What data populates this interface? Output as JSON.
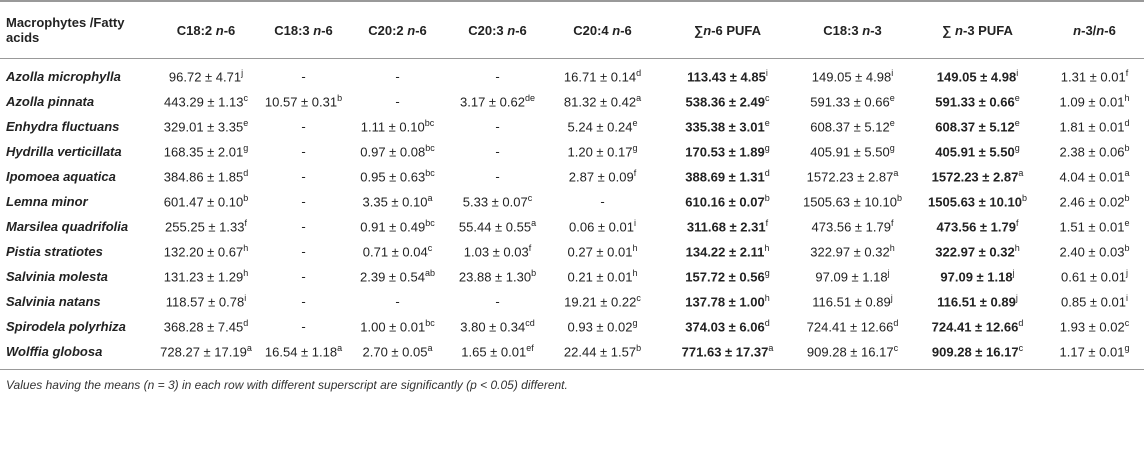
{
  "table": {
    "headers": [
      [
        {
          "text": "Macrophytes /Fatty acids"
        }
      ],
      [
        {
          "text": "C18:2 "
        },
        {
          "text": "n",
          "italic": true
        },
        {
          "text": "-6"
        }
      ],
      [
        {
          "text": "C18:3 "
        },
        {
          "text": "n",
          "italic": true
        },
        {
          "text": "-6"
        }
      ],
      [
        {
          "text": "C20:2 "
        },
        {
          "text": "n",
          "italic": true
        },
        {
          "text": "-6"
        }
      ],
      [
        {
          "text": "C20:3 "
        },
        {
          "text": "n",
          "italic": true
        },
        {
          "text": "-6"
        }
      ],
      [
        {
          "text": "C20:4 "
        },
        {
          "text": "n",
          "italic": true
        },
        {
          "text": "-6"
        }
      ],
      [
        {
          "text": "∑"
        },
        {
          "text": "n",
          "italic": true
        },
        {
          "text": "-6 PUFA"
        }
      ],
      [
        {
          "text": "C18:3 "
        },
        {
          "text": "n",
          "italic": true
        },
        {
          "text": "-3"
        }
      ],
      [
        {
          "text": "∑ "
        },
        {
          "text": "n",
          "italic": true
        },
        {
          "text": "-3 PUFA"
        }
      ],
      [
        {
          "text": "n",
          "italic": true
        },
        {
          "text": "-3/"
        },
        {
          "text": "n",
          "italic": true
        },
        {
          "text": "-6"
        }
      ]
    ],
    "rows": [
      {
        "name": "Azolla microphylla",
        "cells": [
          {
            "value": "96.72 ± 4.71",
            "sup": "j"
          },
          "-",
          "-",
          "-",
          {
            "value": "16.71 ± 0.14",
            "sup": "d"
          },
          {
            "value": "113.43 ± 4.85",
            "sup": "i"
          },
          {
            "value": "149.05 ± 4.98",
            "sup": "i"
          },
          {
            "value": "149.05 ± 4.98",
            "sup": "i"
          },
          {
            "value": "1.31 ± 0.01",
            "sup": "f"
          }
        ]
      },
      {
        "name": "Azolla pinnata",
        "cells": [
          {
            "value": "443.29 ± 1.13",
            "sup": "c"
          },
          {
            "value": "10.57 ± 0.31",
            "sup": "b"
          },
          "-",
          {
            "value": "3.17 ± 0.62",
            "sup": "de"
          },
          {
            "value": "81.32 ± 0.42",
            "sup": "a"
          },
          {
            "value": "538.36 ± 2.49",
            "sup": "c"
          },
          {
            "value": "591.33 ± 0.66",
            "sup": "e"
          },
          {
            "value": "591.33 ± 0.66",
            "sup": "e"
          },
          {
            "value": "1.09 ± 0.01",
            "sup": "h"
          }
        ]
      },
      {
        "name": "Enhydra fluctuans",
        "cells": [
          {
            "value": "329.01 ± 3.35",
            "sup": "e"
          },
          "-",
          {
            "value": "1.11 ± 0.10",
            "sup": "bc"
          },
          "-",
          {
            "value": "5.24 ± 0.24",
            "sup": "e"
          },
          {
            "value": "335.38 ± 3.01",
            "sup": "e"
          },
          {
            "value": "608.37 ± 5.12",
            "sup": "e"
          },
          {
            "value": "608.37 ± 5.12",
            "sup": "e"
          },
          {
            "value": "1.81 ± 0.01",
            "sup": "d"
          }
        ]
      },
      {
        "name": "Hydrilla verticillata",
        "cells": [
          {
            "value": "168.35 ± 2.01",
            "sup": "g"
          },
          "-",
          {
            "value": "0.97 ± 0.08",
            "sup": "bc"
          },
          "-",
          {
            "value": "1.20 ± 0.17",
            "sup": "g"
          },
          {
            "value": "170.53 ± 1.89",
            "sup": "g"
          },
          {
            "value": "405.91 ± 5.50",
            "sup": "g"
          },
          {
            "value": "405.91 ± 5.50",
            "sup": "g"
          },
          {
            "value": "2.38 ± 0.06",
            "sup": "b"
          }
        ]
      },
      {
        "name": "Ipomoea aquatica",
        "cells": [
          {
            "value": "384.86 ± 1.85",
            "sup": "d"
          },
          "-",
          {
            "value": "0.95 ± 0.63",
            "sup": "bc"
          },
          "-",
          {
            "value": "2.87 ± 0.09",
            "sup": "f"
          },
          {
            "value": "388.69 ± 1.31",
            "sup": "d"
          },
          {
            "value": "1572.23 ± 2.87",
            "sup": "a"
          },
          {
            "value": "1572.23 ± 2.87",
            "sup": "a"
          },
          {
            "value": "4.04 ± 0.01",
            "sup": "a"
          }
        ]
      },
      {
        "name": "Lemna minor",
        "cells": [
          {
            "value": "601.47 ± 0.10",
            "sup": "b"
          },
          "-",
          {
            "value": "3.35 ± 0.10",
            "sup": "a"
          },
          {
            "value": "5.33 ± 0.07",
            "sup": "c"
          },
          "-",
          {
            "value": "610.16 ± 0.07",
            "sup": "b"
          },
          {
            "value": "1505.63 ± 10.10",
            "sup": "b"
          },
          {
            "value": "1505.63 ± 10.10",
            "sup": "b"
          },
          {
            "value": "2.46 ± 0.02",
            "sup": "b"
          }
        ]
      },
      {
        "name": "Marsilea quadrifolia",
        "cells": [
          {
            "value": "255.25 ± 1.33",
            "sup": "f"
          },
          "-",
          {
            "value": "0.91 ± 0.49",
            "sup": "bc"
          },
          {
            "value": "55.44 ± 0.55",
            "sup": "a"
          },
          {
            "value": "0.06 ± 0.01",
            "sup": "i"
          },
          {
            "value": "311.68 ± 2.31",
            "sup": "f"
          },
          {
            "value": "473.56 ± 1.79",
            "sup": "f"
          },
          {
            "value": "473.56 ± 1.79",
            "sup": "f"
          },
          {
            "value": "1.51 ± 0.01",
            "sup": "e"
          }
        ]
      },
      {
        "name": "Pistia stratiotes",
        "cells": [
          {
            "value": "132.20 ± 0.67",
            "sup": "h"
          },
          "-",
          {
            "value": "0.71 ± 0.04",
            "sup": "c"
          },
          {
            "value": "1.03 ± 0.03",
            "sup": "f"
          },
          {
            "value": "0.27 ± 0.01",
            "sup": "h"
          },
          {
            "value": "134.22 ± 2.11",
            "sup": "h"
          },
          {
            "value": "322.97 ± 0.32",
            "sup": "h"
          },
          {
            "value": "322.97 ± 0.32",
            "sup": "h"
          },
          {
            "value": "2.40 ± 0.03",
            "sup": "b"
          }
        ]
      },
      {
        "name": "Salvinia molesta",
        "cells": [
          {
            "value": "131.23 ± 1.29",
            "sup": "h"
          },
          "-",
          {
            "value": "2.39 ± 0.54",
            "sup": "ab"
          },
          {
            "value": "23.88 ± 1.30",
            "sup": "b"
          },
          {
            "value": "0.21 ± 0.01",
            "sup": "h"
          },
          {
            "value": "157.72 ± 0.56",
            "sup": "g"
          },
          {
            "value": "97.09 ± 1.18",
            "sup": "j"
          },
          {
            "value": "97.09 ± 1.18",
            "sup": "j"
          },
          {
            "value": "0.61 ± 0.01",
            "sup": "j"
          }
        ]
      },
      {
        "name": "Salvinia natans",
        "cells": [
          {
            "value": "118.57 ± 0.78",
            "sup": "i"
          },
          "-",
          "-",
          "-",
          {
            "value": "19.21 ± 0.22",
            "sup": "c"
          },
          {
            "value": "137.78 ± 1.00",
            "sup": "h"
          },
          {
            "value": "116.51 ± 0.89",
            "sup": "j"
          },
          {
            "value": "116.51 ± 0.89",
            "sup": "j"
          },
          {
            "value": "0.85 ± 0.01",
            "sup": "i"
          }
        ]
      },
      {
        "name": "Spirodela polyrhiza",
        "cells": [
          {
            "value": "368.28 ± 7.45",
            "sup": "d"
          },
          "-",
          {
            "value": "1.00 ± 0.01",
            "sup": "bc"
          },
          {
            "value": "3.80 ± 0.34",
            "sup": "cd"
          },
          {
            "value": "0.93 ± 0.02",
            "sup": "g"
          },
          {
            "value": "374.03 ± 6.06",
            "sup": "d"
          },
          {
            "value": "724.41 ± 12.66",
            "sup": "d"
          },
          {
            "value": "724.41 ± 12.66",
            "sup": "d"
          },
          {
            "value": "1.93 ± 0.02",
            "sup": "c"
          }
        ]
      },
      {
        "name": "Wolffia globosa",
        "cells": [
          {
            "value": "728.27 ± 17.19",
            "sup": "a"
          },
          {
            "value": "16.54 ± 1.18",
            "sup": "a"
          },
          {
            "value": "2.70 ± 0.05",
            "sup": "a"
          },
          {
            "value": "1.65 ± 0.01",
            "sup": "ef"
          },
          {
            "value": "22.44 ± 1.57",
            "sup": "b"
          },
          {
            "value": "771.63 ± 17.37",
            "sup": "a"
          },
          {
            "value": "909.28 ± 16.17",
            "sup": "c"
          },
          {
            "value": "909.28 ± 16.17",
            "sup": "c"
          },
          {
            "value": "1.17 ± 0.01",
            "sup": "g"
          }
        ]
      }
    ]
  },
  "footnote": "Values having the means (n = 3) in each row with different superscript are significantly (p < 0.05) different."
}
